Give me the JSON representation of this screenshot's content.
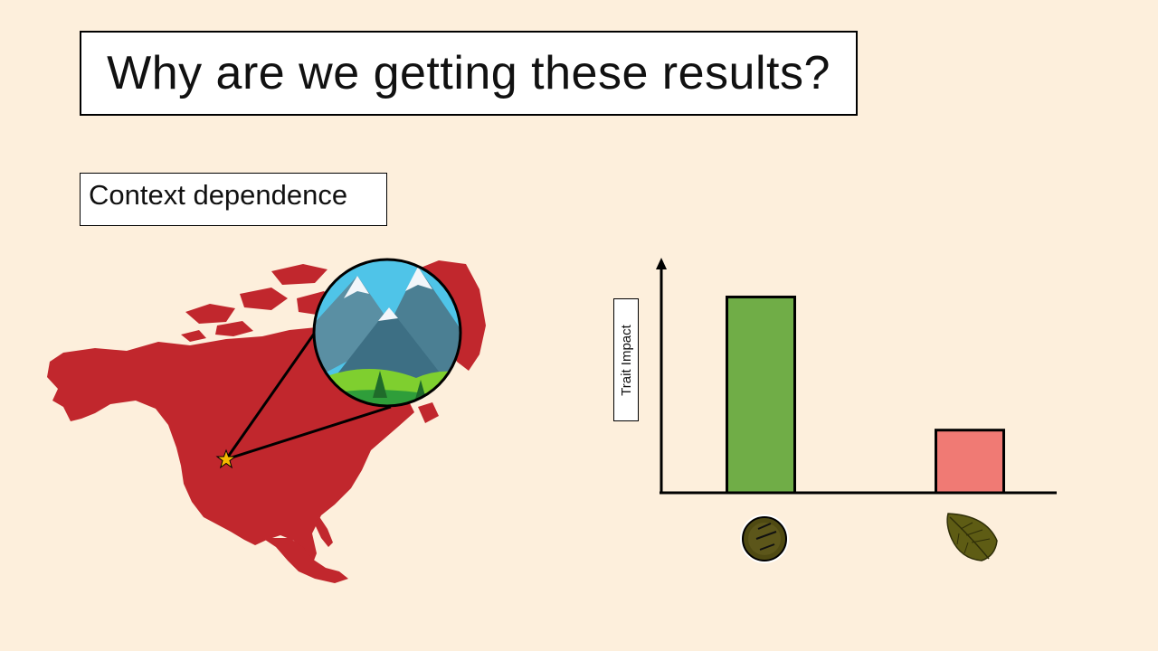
{
  "slide": {
    "title": "Why are we getting these results?",
    "subtitle": "Context dependence"
  },
  "map": {
    "region_color": "#c1272d",
    "marker_icon": "star-icon",
    "marker_color": "#f5b800",
    "inset_icon": "mountain-landscape-icon"
  },
  "chart_data": {
    "type": "bar",
    "categories": [
      "seed",
      "leaf"
    ],
    "values": [
      100,
      32
    ],
    "ylim": [
      0,
      115
    ],
    "ylabel": "Trait Impact",
    "xlabel": "",
    "title": "",
    "colors": [
      "#70ad47",
      "#f07a74"
    ],
    "category_icons": [
      "seed-icon",
      "leaf-icon"
    ],
    "grid": false
  }
}
